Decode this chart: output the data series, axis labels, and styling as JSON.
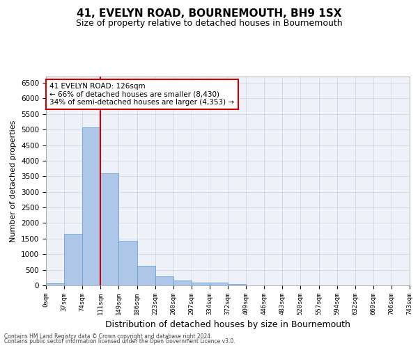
{
  "title": "41, EVELYN ROAD, BOURNEMOUTH, BH9 1SX",
  "subtitle": "Size of property relative to detached houses in Bournemouth",
  "xlabel": "Distribution of detached houses by size in Bournemouth",
  "ylabel": "Number of detached properties",
  "footer_line1": "Contains HM Land Registry data © Crown copyright and database right 2024.",
  "footer_line2": "Contains public sector information licensed under the Open Government Licence v3.0.",
  "bar_values": [
    70,
    1650,
    5080,
    3600,
    1420,
    620,
    295,
    150,
    100,
    80,
    55,
    0,
    0,
    0,
    0,
    0,
    0,
    0,
    0,
    0
  ],
  "x_labels": [
    "0sqm",
    "37sqm",
    "74sqm",
    "111sqm",
    "149sqm",
    "186sqm",
    "223sqm",
    "260sqm",
    "297sqm",
    "334sqm",
    "372sqm",
    "409sqm",
    "446sqm",
    "483sqm",
    "520sqm",
    "557sqm",
    "594sqm",
    "632sqm",
    "669sqm",
    "706sqm",
    "743sqm"
  ],
  "bar_color": "#aec6e8",
  "bar_edge_color": "#5a9fd4",
  "vline_x": 3,
  "vline_color": "#cc0000",
  "annotation_text": "41 EVELYN ROAD: 126sqm\n← 66% of detached houses are smaller (8,430)\n34% of semi-detached houses are larger (4,353) →",
  "annotation_box_color": "#ffffff",
  "annotation_box_edge_color": "#cc0000",
  "ylim": [
    0,
    6700
  ],
  "yticks": [
    0,
    500,
    1000,
    1500,
    2000,
    2500,
    3000,
    3500,
    4000,
    4500,
    5000,
    5500,
    6000,
    6500
  ],
  "grid_color": "#d0d8e8",
  "bg_color": "#eef2f8",
  "title_fontsize": 11,
  "subtitle_fontsize": 9,
  "ylabel_fontsize": 8,
  "xlabel_fontsize": 9,
  "annotation_fontsize": 7.5,
  "tick_fontsize": 6.5,
  "ytick_fontsize": 7.5,
  "footer_fontsize": 5.5
}
